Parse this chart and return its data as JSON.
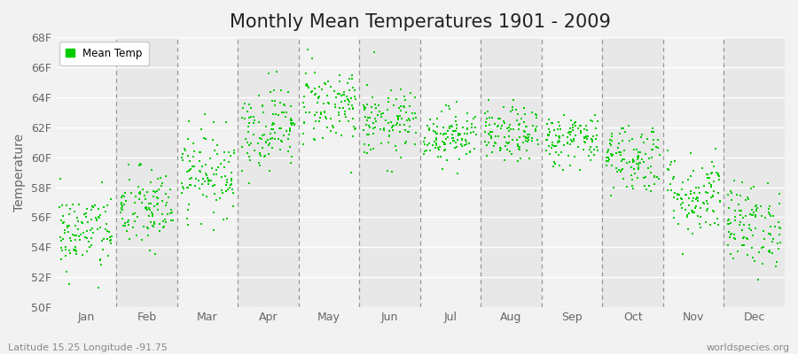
{
  "title": "Monthly Mean Temperatures 1901 - 2009",
  "ylabel": "Temperature",
  "xlabel": "",
  "footer_left": "Latitude 15.25 Longitude -91.75",
  "footer_right": "worldspecies.org",
  "legend_label": "Mean Temp",
  "dot_color": "#00cc00",
  "dot_size": 3,
  "ylim": [
    50,
    68
  ],
  "yticks": [
    50,
    52,
    54,
    56,
    58,
    60,
    62,
    64,
    66,
    68
  ],
  "ytick_labels": [
    "50F",
    "52F",
    "54F",
    "56F",
    "58F",
    "60F",
    "62F",
    "64F",
    "66F",
    "68F"
  ],
  "months": [
    "Jan",
    "Feb",
    "Mar",
    "Apr",
    "May",
    "Jun",
    "Jul",
    "Aug",
    "Sep",
    "Oct",
    "Nov",
    "Dec"
  ],
  "month_means": [
    55.0,
    56.5,
    59.0,
    62.0,
    63.5,
    62.2,
    61.5,
    61.5,
    61.2,
    60.0,
    57.5,
    55.5
  ],
  "month_stds": [
    1.3,
    1.4,
    1.4,
    1.4,
    1.3,
    1.1,
    0.9,
    0.9,
    0.9,
    1.2,
    1.4,
    1.4
  ],
  "n_years": 109,
  "bg_color": "#f2f2f2",
  "band_color_light": "#f2f2f2",
  "band_color_dark": "#e8e8e8",
  "dashed_color": "#999999",
  "title_fontsize": 15,
  "axis_label_fontsize": 10,
  "tick_fontsize": 9
}
